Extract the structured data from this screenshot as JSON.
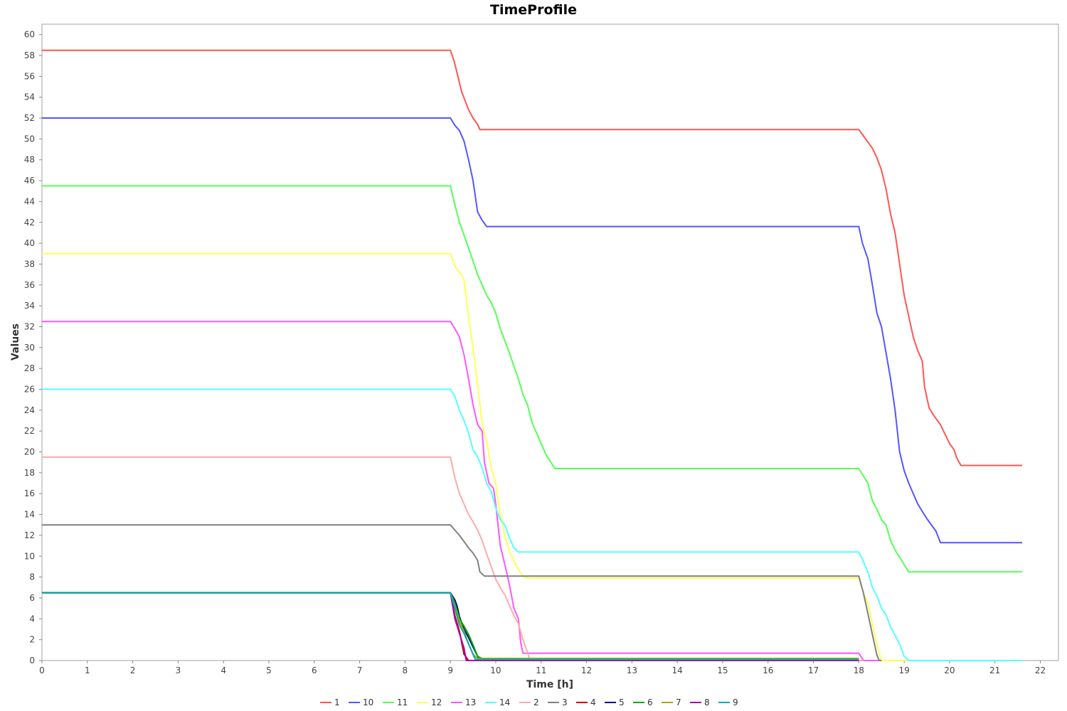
{
  "chart_data": {
    "type": "line",
    "title": "TimeProfile",
    "xlabel": "Time [h]",
    "ylabel": "Values",
    "xlim": [
      0,
      22.4
    ],
    "ylim": [
      0,
      61
    ],
    "xticks": [
      0,
      1,
      2,
      3,
      4,
      5,
      6,
      7,
      8,
      9,
      10,
      11,
      12,
      13,
      14,
      15,
      16,
      17,
      18,
      19,
      20,
      21,
      22
    ],
    "yticks": [
      0,
      2,
      4,
      6,
      8,
      10,
      12,
      14,
      16,
      18,
      20,
      22,
      24,
      26,
      28,
      30,
      32,
      34,
      36,
      38,
      40,
      42,
      44,
      46,
      48,
      50,
      52,
      54,
      56,
      58,
      60
    ],
    "grid": false,
    "legend_position": "bottom",
    "series": [
      {
        "name": "1",
        "color": "#ff5555",
        "points": [
          [
            0,
            58.5
          ],
          [
            9,
            58.5
          ],
          [
            9.08,
            57.5
          ],
          [
            9.25,
            54.5
          ],
          [
            9.4,
            52.8
          ],
          [
            9.5,
            52
          ],
          [
            9.6,
            51.4
          ],
          [
            9.65,
            50.9
          ],
          [
            18,
            50.9
          ],
          [
            18.1,
            50.3
          ],
          [
            18.2,
            49.7
          ],
          [
            18.3,
            49.1
          ],
          [
            18.4,
            48.2
          ],
          [
            18.5,
            47
          ],
          [
            18.6,
            45.2
          ],
          [
            18.7,
            42.8
          ],
          [
            18.8,
            41
          ],
          [
            18.9,
            38
          ],
          [
            19,
            35
          ],
          [
            19.1,
            33
          ],
          [
            19.2,
            31
          ],
          [
            19.3,
            29.7
          ],
          [
            19.4,
            28.7
          ],
          [
            19.45,
            26.2
          ],
          [
            19.55,
            24.2
          ],
          [
            19.65,
            23.5
          ],
          [
            19.8,
            22.6
          ],
          [
            19.9,
            21.7
          ],
          [
            20,
            20.8
          ],
          [
            20.1,
            20.2
          ],
          [
            20.15,
            19.5
          ],
          [
            20.25,
            18.7
          ],
          [
            21.6,
            18.7
          ]
        ]
      },
      {
        "name": "10",
        "color": "#5555ff",
        "points": [
          [
            0,
            52
          ],
          [
            9,
            52
          ],
          [
            9.1,
            51.3
          ],
          [
            9.2,
            50.8
          ],
          [
            9.3,
            49.8
          ],
          [
            9.4,
            48
          ],
          [
            9.5,
            46
          ],
          [
            9.6,
            43
          ],
          [
            9.7,
            42.2
          ],
          [
            9.8,
            41.6
          ],
          [
            18,
            41.6
          ],
          [
            18.08,
            40
          ],
          [
            18.2,
            38.5
          ],
          [
            18.3,
            36
          ],
          [
            18.4,
            33.3
          ],
          [
            18.5,
            32
          ],
          [
            18.6,
            29.5
          ],
          [
            18.7,
            27
          ],
          [
            18.8,
            24
          ],
          [
            18.9,
            20
          ],
          [
            19,
            18.2
          ],
          [
            19.1,
            17
          ],
          [
            19.3,
            15
          ],
          [
            19.5,
            13.6
          ],
          [
            19.7,
            12.4
          ],
          [
            19.8,
            11.3
          ],
          [
            21.6,
            11.3
          ]
        ]
      },
      {
        "name": "11",
        "color": "#55ff55",
        "points": [
          [
            0,
            45.5
          ],
          [
            9,
            45.5
          ],
          [
            9.08,
            44
          ],
          [
            9.2,
            42
          ],
          [
            9.3,
            40.8
          ],
          [
            9.5,
            38.3
          ],
          [
            9.6,
            37
          ],
          [
            9.7,
            36
          ],
          [
            9.8,
            35
          ],
          [
            9.9,
            34.3
          ],
          [
            10,
            33.3
          ],
          [
            10.1,
            31.8
          ],
          [
            10.3,
            29.5
          ],
          [
            10.4,
            28.2
          ],
          [
            10.5,
            27
          ],
          [
            10.6,
            25.5
          ],
          [
            10.7,
            24.5
          ],
          [
            10.8,
            22.8
          ],
          [
            10.9,
            21.8
          ],
          [
            11,
            20.8
          ],
          [
            11.1,
            19.8
          ],
          [
            11.3,
            18.4
          ],
          [
            18,
            18.4
          ],
          [
            18.2,
            17
          ],
          [
            18.3,
            15.3
          ],
          [
            18.4,
            14.5
          ],
          [
            18.5,
            13.5
          ],
          [
            18.6,
            13
          ],
          [
            18.7,
            11.5
          ],
          [
            18.8,
            10.6
          ],
          [
            19,
            9.2
          ],
          [
            19.1,
            8.5
          ],
          [
            21.6,
            8.5
          ]
        ]
      },
      {
        "name": "12",
        "color": "#ffff55",
        "points": [
          [
            0,
            39
          ],
          [
            9,
            39
          ],
          [
            9.1,
            37.8
          ],
          [
            9.2,
            37.2
          ],
          [
            9.3,
            36.5
          ],
          [
            9.4,
            33
          ],
          [
            9.5,
            30
          ],
          [
            9.6,
            26.5
          ],
          [
            9.7,
            22.7
          ],
          [
            9.8,
            21
          ],
          [
            9.9,
            18.5
          ],
          [
            10,
            17
          ],
          [
            10.1,
            14
          ],
          [
            10.2,
            12
          ],
          [
            10.3,
            10.5
          ],
          [
            10.4,
            9.5
          ],
          [
            10.5,
            8.7
          ],
          [
            10.6,
            8.1
          ],
          [
            10.7,
            7.9
          ],
          [
            18,
            7.9
          ],
          [
            18.1,
            6.5
          ],
          [
            18.2,
            5.5
          ],
          [
            18.3,
            3.5
          ],
          [
            18.4,
            1.5
          ],
          [
            18.5,
            0
          ],
          [
            21.6,
            0
          ]
        ]
      },
      {
        "name": "13",
        "color": "#ff55ff",
        "points": [
          [
            0,
            32.5
          ],
          [
            9,
            32.5
          ],
          [
            9.1,
            31.8
          ],
          [
            9.2,
            31
          ],
          [
            9.3,
            29.3
          ],
          [
            9.4,
            27
          ],
          [
            9.5,
            24.5
          ],
          [
            9.6,
            22.6
          ],
          [
            9.7,
            22
          ],
          [
            9.75,
            19
          ],
          [
            9.85,
            17
          ],
          [
            9.95,
            16.5
          ],
          [
            10,
            15
          ],
          [
            10.1,
            11
          ],
          [
            10.2,
            9.2
          ],
          [
            10.3,
            7.3
          ],
          [
            10.4,
            5
          ],
          [
            10.5,
            4
          ],
          [
            10.55,
            1.7
          ],
          [
            10.6,
            0.7
          ],
          [
            18,
            0.7
          ],
          [
            18.1,
            0
          ],
          [
            18.5,
            0
          ]
        ]
      },
      {
        "name": "14",
        "color": "#55ffff",
        "points": [
          [
            0,
            26
          ],
          [
            9,
            26
          ],
          [
            9.1,
            25.3
          ],
          [
            9.2,
            24
          ],
          [
            9.3,
            23
          ],
          [
            9.4,
            21.8
          ],
          [
            9.5,
            20.2
          ],
          [
            9.6,
            19.5
          ],
          [
            9.7,
            18.5
          ],
          [
            9.8,
            17
          ],
          [
            9.9,
            16.2
          ],
          [
            10,
            14.6
          ],
          [
            10.1,
            13.5
          ],
          [
            10.2,
            13
          ],
          [
            10.3,
            11.8
          ],
          [
            10.4,
            10.8
          ],
          [
            10.5,
            10.4
          ],
          [
            18,
            10.4
          ],
          [
            18.1,
            9.5
          ],
          [
            18.2,
            8.5
          ],
          [
            18.3,
            7
          ],
          [
            18.4,
            6.2
          ],
          [
            18.5,
            5
          ],
          [
            18.6,
            4.4
          ],
          [
            18.7,
            3.2
          ],
          [
            18.9,
            1.6
          ],
          [
            19,
            0.4
          ],
          [
            19.1,
            0
          ],
          [
            21.6,
            0
          ]
        ]
      },
      {
        "name": "2",
        "color": "#ffaaaa",
        "points": [
          [
            0,
            19.5
          ],
          [
            9,
            19.5
          ],
          [
            9.1,
            17.5
          ],
          [
            9.2,
            16
          ],
          [
            9.3,
            15
          ],
          [
            9.4,
            14
          ],
          [
            9.5,
            13.3
          ],
          [
            9.6,
            12.5
          ],
          [
            9.7,
            11.5
          ],
          [
            9.8,
            10.2
          ],
          [
            9.9,
            9
          ],
          [
            10,
            7.8
          ],
          [
            10.1,
            7
          ],
          [
            10.2,
            6.3
          ],
          [
            10.3,
            5.3
          ],
          [
            10.4,
            4.3
          ],
          [
            10.5,
            3.5
          ],
          [
            10.6,
            2
          ],
          [
            10.7,
            0.8
          ],
          [
            10.75,
            0
          ],
          [
            18.1,
            0
          ]
        ]
      },
      {
        "name": "3",
        "color": "#808080",
        "points": [
          [
            0,
            13
          ],
          [
            9,
            13
          ],
          [
            9.1,
            12.5
          ],
          [
            9.2,
            12
          ],
          [
            9.3,
            11.4
          ],
          [
            9.4,
            10.8
          ],
          [
            9.5,
            10.3
          ],
          [
            9.6,
            9.6
          ],
          [
            9.65,
            8.5
          ],
          [
            9.75,
            8.1
          ],
          [
            18,
            8.1
          ],
          [
            18.1,
            6.5
          ],
          [
            18.2,
            4.5
          ],
          [
            18.3,
            2.5
          ],
          [
            18.4,
            0.5
          ],
          [
            18.45,
            0
          ],
          [
            18.5,
            0
          ]
        ]
      },
      {
        "name": "4",
        "color": "#cc0000",
        "points": [
          [
            0,
            6.5
          ],
          [
            9,
            6.5
          ],
          [
            9.1,
            4.3
          ],
          [
            9.2,
            2.8
          ],
          [
            9.3,
            0.6
          ],
          [
            9.4,
            0
          ],
          [
            9.6,
            0
          ],
          [
            18,
            0
          ]
        ]
      },
      {
        "name": "5",
        "color": "#000099",
        "points": [
          [
            0,
            6.5
          ],
          [
            9,
            6.5
          ],
          [
            9.1,
            5.8
          ],
          [
            9.15,
            5.2
          ],
          [
            9.2,
            4.2
          ],
          [
            9.3,
            3
          ],
          [
            9.4,
            2.2
          ],
          [
            9.5,
            1.3
          ],
          [
            9.6,
            0.4
          ],
          [
            9.65,
            0
          ],
          [
            18,
            0
          ]
        ]
      },
      {
        "name": "6",
        "color": "#00aa00",
        "points": [
          [
            0,
            6.5
          ],
          [
            9,
            6.5
          ],
          [
            9.1,
            5.5
          ],
          [
            9.2,
            4
          ],
          [
            9.3,
            3.3
          ],
          [
            9.4,
            2.5
          ],
          [
            9.5,
            1.5
          ],
          [
            9.6,
            0.4
          ],
          [
            9.7,
            0.2
          ],
          [
            18,
            0.2
          ]
        ]
      },
      {
        "name": "7",
        "color": "#aaaa00",
        "points": [
          [
            0,
            6.5
          ],
          [
            9,
            6.5
          ],
          [
            9.1,
            5.2
          ],
          [
            9.2,
            3.8
          ],
          [
            9.3,
            2.8
          ],
          [
            9.4,
            1.6
          ],
          [
            9.5,
            0.6
          ],
          [
            9.6,
            0.2
          ],
          [
            18,
            0.2
          ]
        ]
      },
      {
        "name": "8",
        "color": "#aa00aa",
        "points": [
          [
            0,
            6.5
          ],
          [
            9,
            6.5
          ],
          [
            9.1,
            4
          ],
          [
            9.2,
            2.6
          ],
          [
            9.3,
            1.2
          ],
          [
            9.35,
            0
          ],
          [
            18,
            0
          ]
        ]
      },
      {
        "name": "9",
        "color": "#00aaaa",
        "points": [
          [
            0,
            6.5
          ],
          [
            9,
            6.5
          ],
          [
            9.1,
            5
          ],
          [
            9.2,
            3.4
          ],
          [
            9.3,
            2.6
          ],
          [
            9.4,
            1.6
          ],
          [
            9.5,
            0.6
          ],
          [
            9.55,
            0.1
          ],
          [
            18,
            0.1
          ]
        ]
      }
    ]
  }
}
